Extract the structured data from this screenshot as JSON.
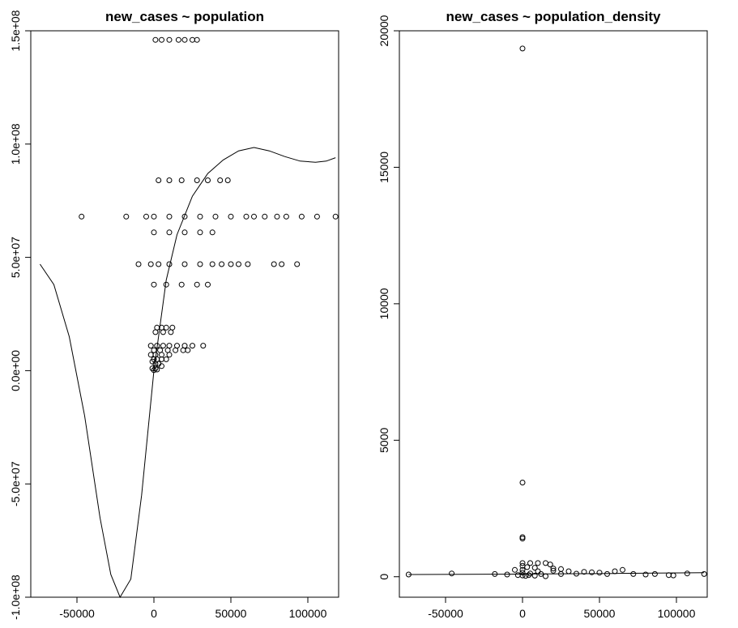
{
  "chart_data": [
    {
      "type": "scatter",
      "title": "new_cases ~ population",
      "xlabel": "",
      "ylabel": "",
      "xlim": [
        -80000,
        120000
      ],
      "ylim": [
        -100000000,
        150000000
      ],
      "xticks": [
        -50000,
        0,
        50000,
        100000
      ],
      "xtick_labels": [
        "-50000",
        "0",
        "50000",
        "100000"
      ],
      "yticks": [
        -100000000,
        -50000000,
        0,
        50000000,
        100000000,
        150000000
      ],
      "ytick_labels": [
        "-1.0e+08",
        "-5.0e+07",
        "0.0e+00",
        "5.0e+07",
        "1.0e+08",
        "1.5e+08"
      ],
      "grid": false,
      "legend": "none",
      "fit_curve": {
        "x": [
          -74000,
          -65000,
          -55000,
          -45000,
          -35000,
          -28000,
          -22000,
          -15000,
          -8000,
          0,
          8000,
          15000,
          25000,
          35000,
          45000,
          55000,
          65000,
          75000,
          85000,
          95000,
          105000,
          112000,
          118000
        ],
        "y": [
          47000000,
          38000000,
          15000000,
          -20000000,
          -65000000,
          -90000000,
          -100000000,
          -92000000,
          -55000000,
          0,
          40000000,
          60000000,
          77000000,
          87000000,
          93000000,
          97000000,
          98500000,
          97000000,
          94500000,
          92500000,
          92000000,
          92500000,
          94000000
        ]
      },
      "series": [
        {
          "points": [
            [
              16000,
              146000000
            ],
            [
              1000,
              146000000
            ],
            [
              5000,
              146000000
            ],
            [
              10000,
              146000000
            ],
            [
              20000,
              146000000
            ],
            [
              25000,
              146000000
            ],
            [
              28000,
              146000000
            ],
            [
              3000,
              84000000
            ],
            [
              10000,
              84000000
            ],
            [
              18000,
              84000000
            ],
            [
              28000,
              84000000
            ],
            [
              35000,
              84000000
            ],
            [
              43000,
              84000000
            ],
            [
              48000,
              84000000
            ],
            [
              -47000,
              68000000
            ],
            [
              -18000,
              68000000
            ],
            [
              -5000,
              68000000
            ],
            [
              0,
              68000000
            ],
            [
              10000,
              68000000
            ],
            [
              20000,
              68000000
            ],
            [
              30000,
              68000000
            ],
            [
              40000,
              68000000
            ],
            [
              50000,
              68000000
            ],
            [
              60000,
              68000000
            ],
            [
              65000,
              68000000
            ],
            [
              72000,
              68000000
            ],
            [
              80000,
              68000000
            ],
            [
              86000,
              68000000
            ],
            [
              96000,
              68000000
            ],
            [
              106000,
              68000000
            ],
            [
              118000,
              68000000
            ],
            [
              0,
              61000000
            ],
            [
              10000,
              61000000
            ],
            [
              20000,
              61000000
            ],
            [
              30000,
              61000000
            ],
            [
              38000,
              61000000
            ],
            [
              -10000,
              47000000
            ],
            [
              -2000,
              47000000
            ],
            [
              3000,
              47000000
            ],
            [
              10000,
              47000000
            ],
            [
              20000,
              47000000
            ],
            [
              30000,
              47000000
            ],
            [
              38000,
              47000000
            ],
            [
              44000,
              47000000
            ],
            [
              50000,
              47000000
            ],
            [
              55000,
              47000000
            ],
            [
              61000,
              47000000
            ],
            [
              78000,
              47000000
            ],
            [
              83000,
              47000000
            ],
            [
              93000,
              47000000
            ],
            [
              0,
              38000000
            ],
            [
              8000,
              38000000
            ],
            [
              18000,
              38000000
            ],
            [
              28000,
              38000000
            ],
            [
              35000,
              38000000
            ],
            [
              2000,
              19000000
            ],
            [
              5000,
              19000000
            ],
            [
              8000,
              19000000
            ],
            [
              12000,
              19000000
            ],
            [
              1000,
              17000000
            ],
            [
              6000,
              17000000
            ],
            [
              11000,
              17000000
            ],
            [
              -2000,
              11000000
            ],
            [
              2000,
              11000000
            ],
            [
              6000,
              11000000
            ],
            [
              10000,
              11000000
            ],
            [
              15000,
              11000000
            ],
            [
              20000,
              11000000
            ],
            [
              25000,
              11000000
            ],
            [
              32000,
              11000000
            ],
            [
              0,
              9000000
            ],
            [
              4000,
              9000000
            ],
            [
              9000,
              9000000
            ],
            [
              14000,
              9000000
            ],
            [
              19000,
              9000000
            ],
            [
              22000,
              9000000
            ],
            [
              -2000,
              7000000
            ],
            [
              1000,
              7000000
            ],
            [
              5000,
              7000000
            ],
            [
              10000,
              7000000
            ],
            [
              0,
              5000000
            ],
            [
              2000,
              5000000
            ],
            [
              5000,
              5000000
            ],
            [
              8000,
              5000000
            ],
            [
              -1000,
              4000000
            ],
            [
              1000,
              3000000
            ],
            [
              3000,
              3000000
            ],
            [
              5000,
              2000000
            ],
            [
              -1000,
              1000000
            ],
            [
              1000,
              1000000
            ],
            [
              2000,
              500000
            ],
            [
              0,
              200000
            ]
          ]
        }
      ]
    },
    {
      "type": "scatter",
      "title": "new_cases ~ population_density",
      "xlabel": "",
      "ylabel": "",
      "xlim": [
        -80000,
        120000
      ],
      "ylim": [
        -750,
        20000
      ],
      "xticks": [
        -50000,
        0,
        50000,
        100000
      ],
      "xtick_labels": [
        "-50000",
        "0",
        "50000",
        "100000"
      ],
      "yticks": [
        0,
        5000,
        10000,
        15000,
        20000
      ],
      "ytick_labels": [
        "0",
        "5000",
        "10000",
        "15000",
        "20000"
      ],
      "grid": false,
      "legend": "none",
      "fit_curve": {
        "x": [
          -74000,
          0,
          60000,
          118000
        ],
        "y": [
          80,
          100,
          120,
          150
        ]
      },
      "series": [
        {
          "points": [
            [
              0,
              19350
            ],
            [
              0,
              3450
            ],
            [
              0,
              1450
            ],
            [
              0,
              1400
            ],
            [
              -74000,
              80
            ],
            [
              -46000,
              120
            ],
            [
              -18000,
              100
            ],
            [
              -10000,
              80
            ],
            [
              -5000,
              250
            ],
            [
              -3000,
              60
            ],
            [
              0,
              500
            ],
            [
              5000,
              500
            ],
            [
              10000,
              500
            ],
            [
              15000,
              500
            ],
            [
              18000,
              450
            ],
            [
              0,
              400
            ],
            [
              3000,
              350
            ],
            [
              8000,
              330
            ],
            [
              20000,
              300
            ],
            [
              25000,
              280
            ],
            [
              0,
              250
            ],
            [
              10000,
              200
            ],
            [
              20000,
              220
            ],
            [
              30000,
              200
            ],
            [
              40000,
              180
            ],
            [
              45000,
              160
            ],
            [
              0,
              150
            ],
            [
              5000,
              120
            ],
            [
              12000,
              100
            ],
            [
              25000,
              100
            ],
            [
              35000,
              110
            ],
            [
              0,
              50
            ],
            [
              2000,
              30
            ],
            [
              4000,
              60
            ],
            [
              8000,
              40
            ],
            [
              15000,
              20
            ],
            [
              50000,
              150
            ],
            [
              55000,
              100
            ],
            [
              60000,
              200
            ],
            [
              65000,
              250
            ],
            [
              72000,
              100
            ],
            [
              80000,
              80
            ],
            [
              86000,
              100
            ],
            [
              95000,
              60
            ],
            [
              98000,
              50
            ],
            [
              107000,
              120
            ],
            [
              118000,
              100
            ]
          ]
        }
      ]
    }
  ]
}
